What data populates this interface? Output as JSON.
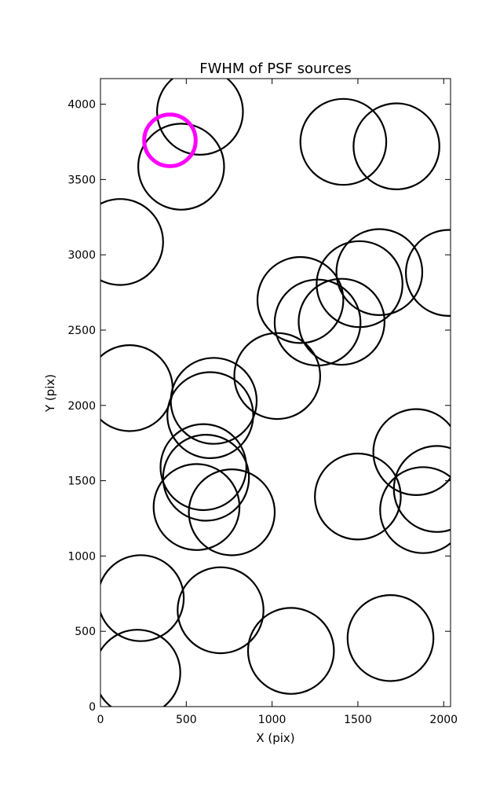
{
  "chart_data": {
    "type": "scatter",
    "title": "FWHM of PSF sources",
    "xlabel": "X (pix)",
    "ylabel": "Y (pix)",
    "xlim": [
      0,
      2040
    ],
    "ylim": [
      0,
      4170
    ],
    "xticks": [
      0,
      500,
      1000,
      1500,
      2000
    ],
    "yticks": [
      0,
      500,
      1000,
      1500,
      2000,
      2500,
      3000,
      3500,
      4000
    ],
    "grid": false,
    "radius_units": 250,
    "highlight_radius_units": 150,
    "colors": {
      "default": "#000000",
      "highlight": "#ff00ff"
    },
    "sources": [
      {
        "x": 580,
        "y": 3950,
        "highlight": false
      },
      {
        "x": 470,
        "y": 3585,
        "highlight": false
      },
      {
        "x": 405,
        "y": 3760,
        "highlight": true
      },
      {
        "x": 1415,
        "y": 3750,
        "highlight": false
      },
      {
        "x": 1725,
        "y": 3720,
        "highlight": false
      },
      {
        "x": 115,
        "y": 3085,
        "highlight": false
      },
      {
        "x": 1625,
        "y": 2885,
        "highlight": false
      },
      {
        "x": 2030,
        "y": 2880,
        "highlight": false
      },
      {
        "x": 1510,
        "y": 2805,
        "highlight": false
      },
      {
        "x": 1165,
        "y": 2700,
        "highlight": false
      },
      {
        "x": 1265,
        "y": 2550,
        "highlight": false
      },
      {
        "x": 1405,
        "y": 2555,
        "highlight": false
      },
      {
        "x": 1030,
        "y": 2195,
        "highlight": false
      },
      {
        "x": 170,
        "y": 2115,
        "highlight": false
      },
      {
        "x": 660,
        "y": 2030,
        "highlight": false
      },
      {
        "x": 640,
        "y": 1935,
        "highlight": false
      },
      {
        "x": 1840,
        "y": 1690,
        "highlight": false
      },
      {
        "x": 600,
        "y": 1590,
        "highlight": false
      },
      {
        "x": 615,
        "y": 1520,
        "highlight": false
      },
      {
        "x": 1960,
        "y": 1445,
        "highlight": false
      },
      {
        "x": 1500,
        "y": 1395,
        "highlight": false
      },
      {
        "x": 560,
        "y": 1325,
        "highlight": false
      },
      {
        "x": 765,
        "y": 1290,
        "highlight": false
      },
      {
        "x": 1880,
        "y": 1305,
        "highlight": false
      },
      {
        "x": 235,
        "y": 720,
        "highlight": false
      },
      {
        "x": 700,
        "y": 640,
        "highlight": false
      },
      {
        "x": 1110,
        "y": 370,
        "highlight": false
      },
      {
        "x": 1690,
        "y": 455,
        "highlight": false
      },
      {
        "x": 215,
        "y": 225,
        "highlight": false
      }
    ]
  }
}
